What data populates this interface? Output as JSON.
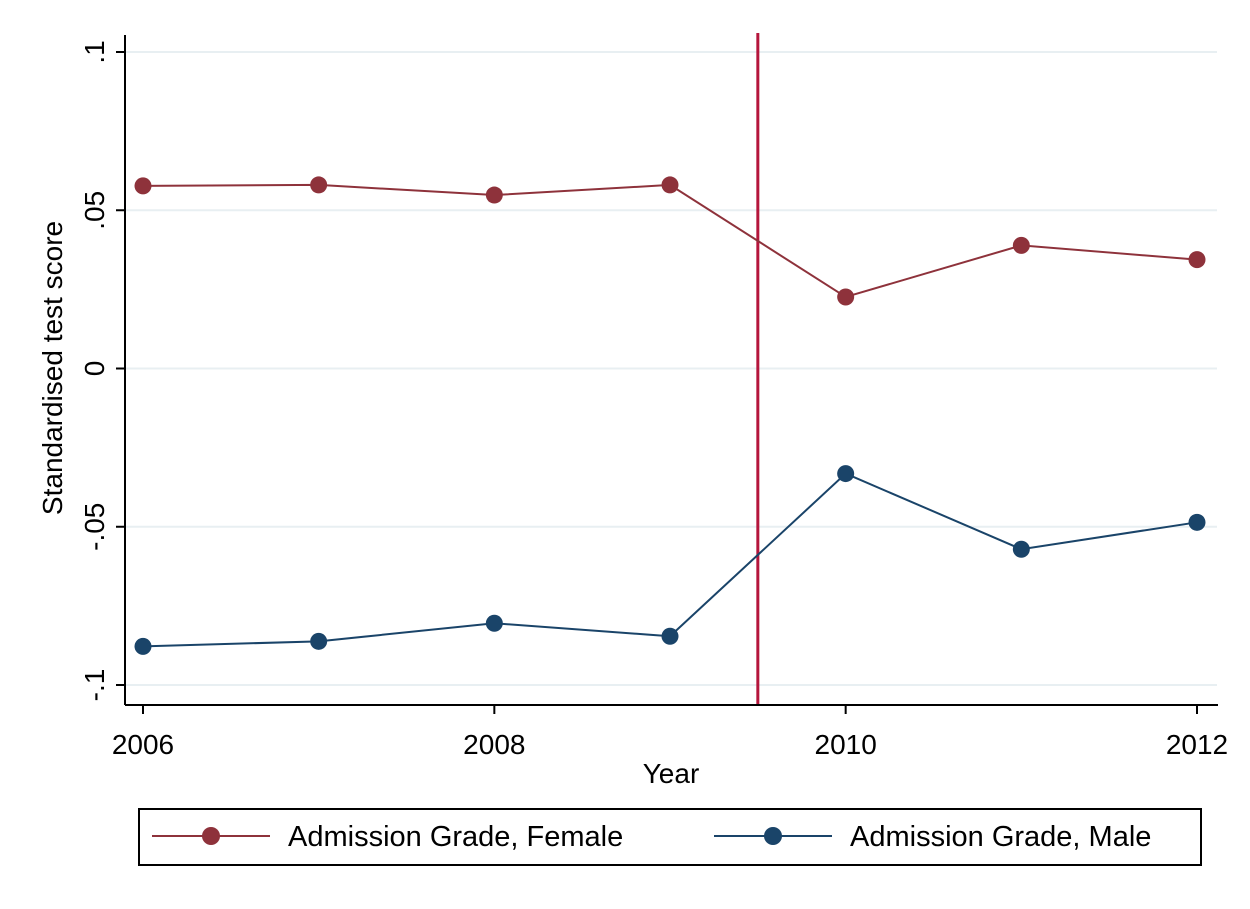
{
  "chart_data": {
    "type": "line",
    "title": "",
    "xlabel": "Year",
    "ylabel": "Standardised test score",
    "x": [
      2006,
      2007,
      2008,
      2009,
      2010,
      2011,
      2012
    ],
    "x_ticks": [
      2006,
      2008,
      2010,
      2012
    ],
    "x_tick_labels": [
      "2006",
      "2008",
      "2010",
      "2012"
    ],
    "xlim": [
      2006,
      2012
    ],
    "y_ticks": [
      -0.1,
      -0.05,
      0,
      0.05,
      0.1
    ],
    "y_tick_labels": [
      "-.1",
      "-.05",
      "0",
      ".05",
      ".1"
    ],
    "ylim": [
      -0.1,
      0.1
    ],
    "grid": true,
    "vertical_reference_line": {
      "x": 2009.5,
      "color": "#b5163c"
    },
    "legend_position": "bottom",
    "series": [
      {
        "name": "Admission Grade, Female",
        "color": "#8e323b",
        "values": [
          0.0577,
          0.058,
          0.0548,
          0.058,
          0.0226,
          0.0389,
          0.0344
        ]
      },
      {
        "name": "Admission Grade, Male",
        "color": "#1a4469",
        "values": [
          -0.0878,
          -0.0862,
          -0.0805,
          -0.0846,
          -0.0332,
          -0.0571,
          -0.0486
        ]
      }
    ]
  }
}
